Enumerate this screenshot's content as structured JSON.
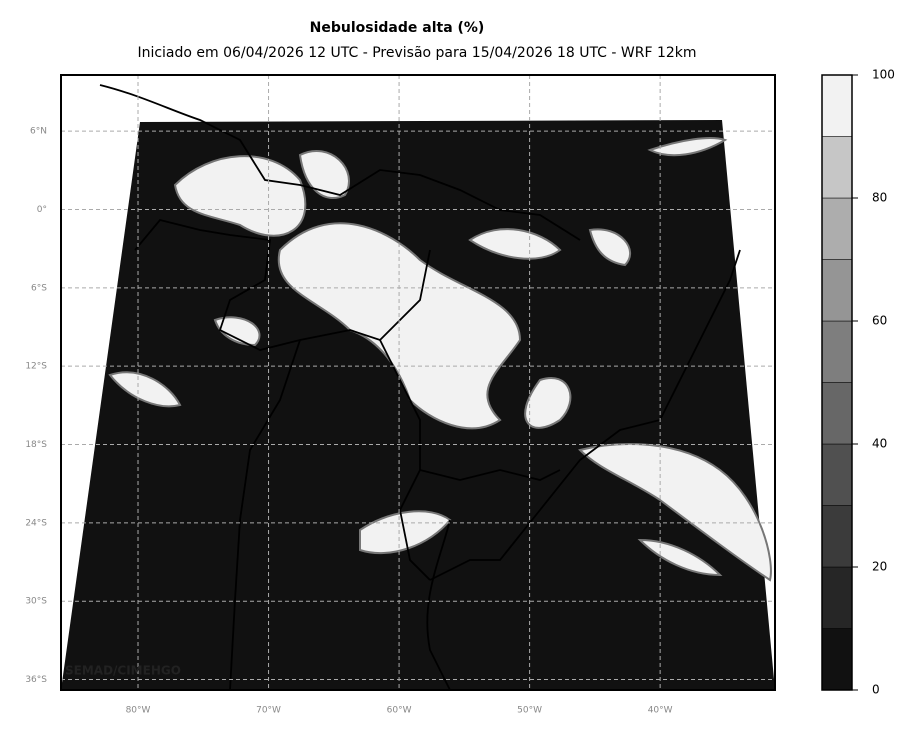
{
  "title": "Nebulosidade alta (%)",
  "subtitle": "Iniciado em 06/04/2026 12 UTC - Previsão para 15/04/2026 18 UTC - WRF 12km",
  "watermark": "SEMAD/CIMEHGO",
  "map": {
    "xlim": [
      -85.9,
      -31.2
    ],
    "ylim": [
      -36.8,
      10.3
    ],
    "xticks": [
      {
        "value": -80,
        "label": "80°W"
      },
      {
        "value": -70,
        "label": "70°W"
      },
      {
        "value": -60,
        "label": "60°W"
      },
      {
        "value": -50,
        "label": "50°W"
      },
      {
        "value": -40,
        "label": "40°W"
      }
    ],
    "yticks": [
      {
        "value": 6,
        "label": "6°N"
      },
      {
        "value": 0,
        "label": "0°"
      },
      {
        "value": -6,
        "label": "6°S"
      },
      {
        "value": -12,
        "label": "12°S"
      },
      {
        "value": -18,
        "label": "18°S"
      },
      {
        "value": -24,
        "label": "24°S"
      },
      {
        "value": -30,
        "label": "30°S"
      },
      {
        "value": -36,
        "label": "36°S"
      }
    ],
    "grid": true
  },
  "colorbar": {
    "lim": [
      0,
      100
    ],
    "ticks": [
      0,
      20,
      40,
      60,
      80,
      100
    ],
    "levels": [
      0,
      10,
      20,
      30,
      40,
      50,
      60,
      70,
      80,
      90,
      100
    ],
    "colors": [
      "#111111",
      "#262626",
      "#3b3b3b",
      "#505050",
      "#676767",
      "#7e7e7e",
      "#959595",
      "#adadad",
      "#c6c6c6",
      "#f2f2f2"
    ]
  }
}
